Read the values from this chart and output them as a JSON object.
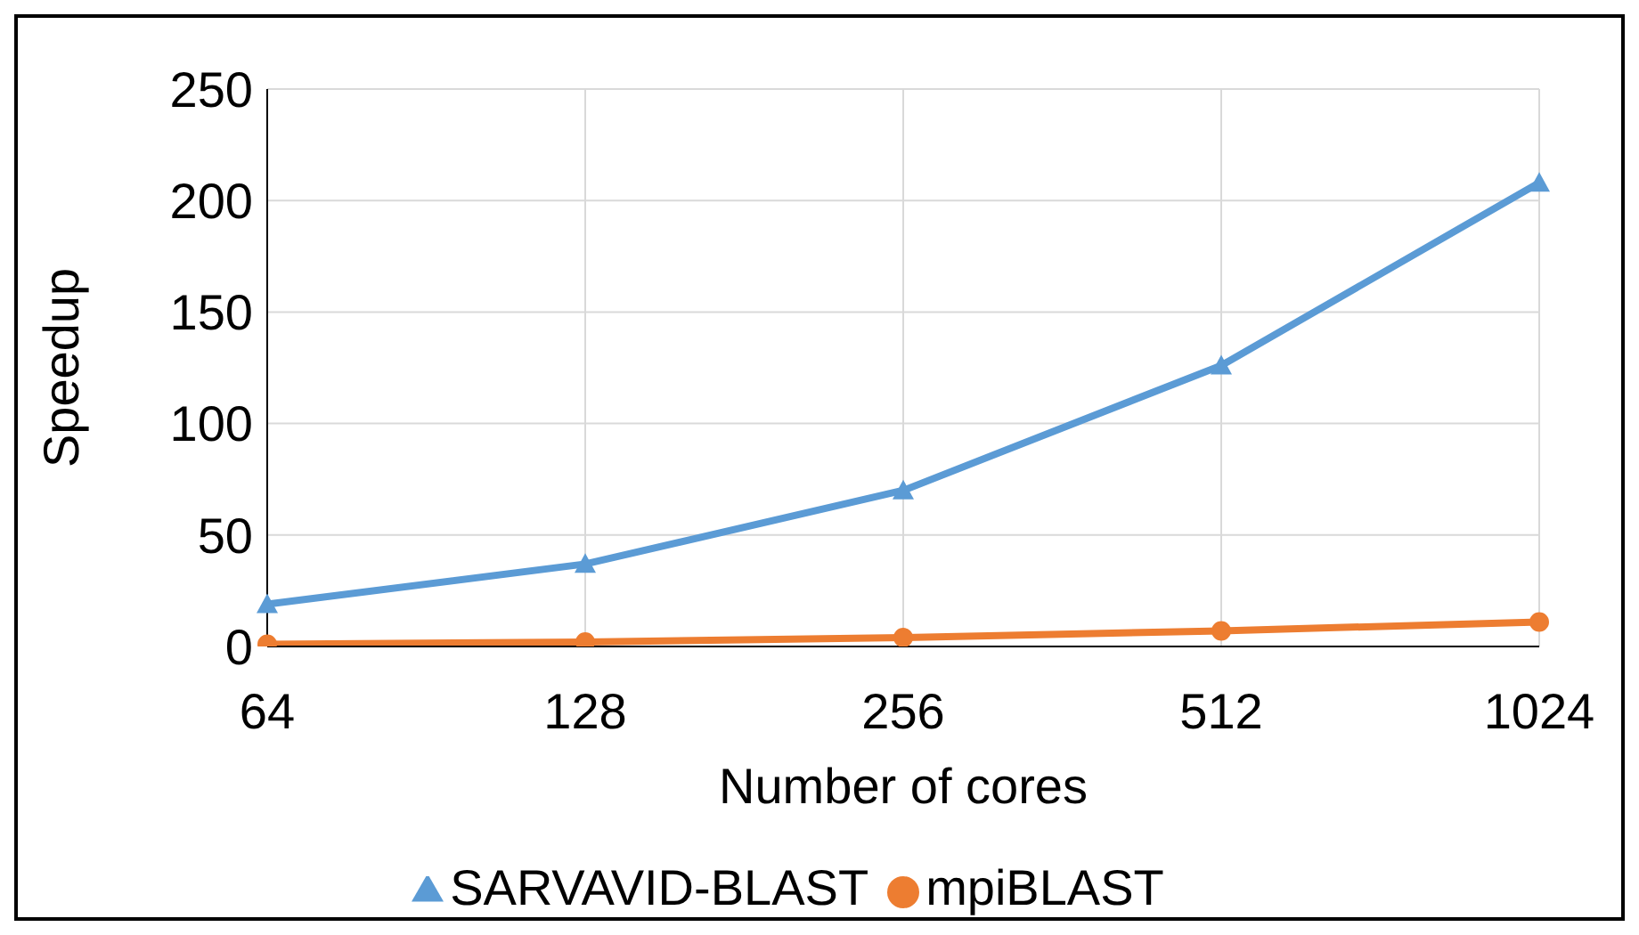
{
  "chart_data": {
    "type": "line",
    "xlabel": "Number of cores",
    "ylabel": "Speedup",
    "categories": [
      "64",
      "128",
      "256",
      "512",
      "1024"
    ],
    "series": [
      {
        "name": "SARVAVID-BLAST",
        "color": "#5b9bd5",
        "marker": "triangle",
        "values": [
          19,
          37,
          70,
          126,
          208
        ]
      },
      {
        "name": "mpiBLAST",
        "color": "#ed7d31",
        "marker": "circle",
        "values": [
          1,
          2,
          4,
          7,
          11
        ]
      }
    ],
    "ylim": [
      0,
      250
    ],
    "yticks": [
      0,
      50,
      100,
      150,
      200,
      250
    ],
    "grid": true,
    "legend": "bottom"
  }
}
